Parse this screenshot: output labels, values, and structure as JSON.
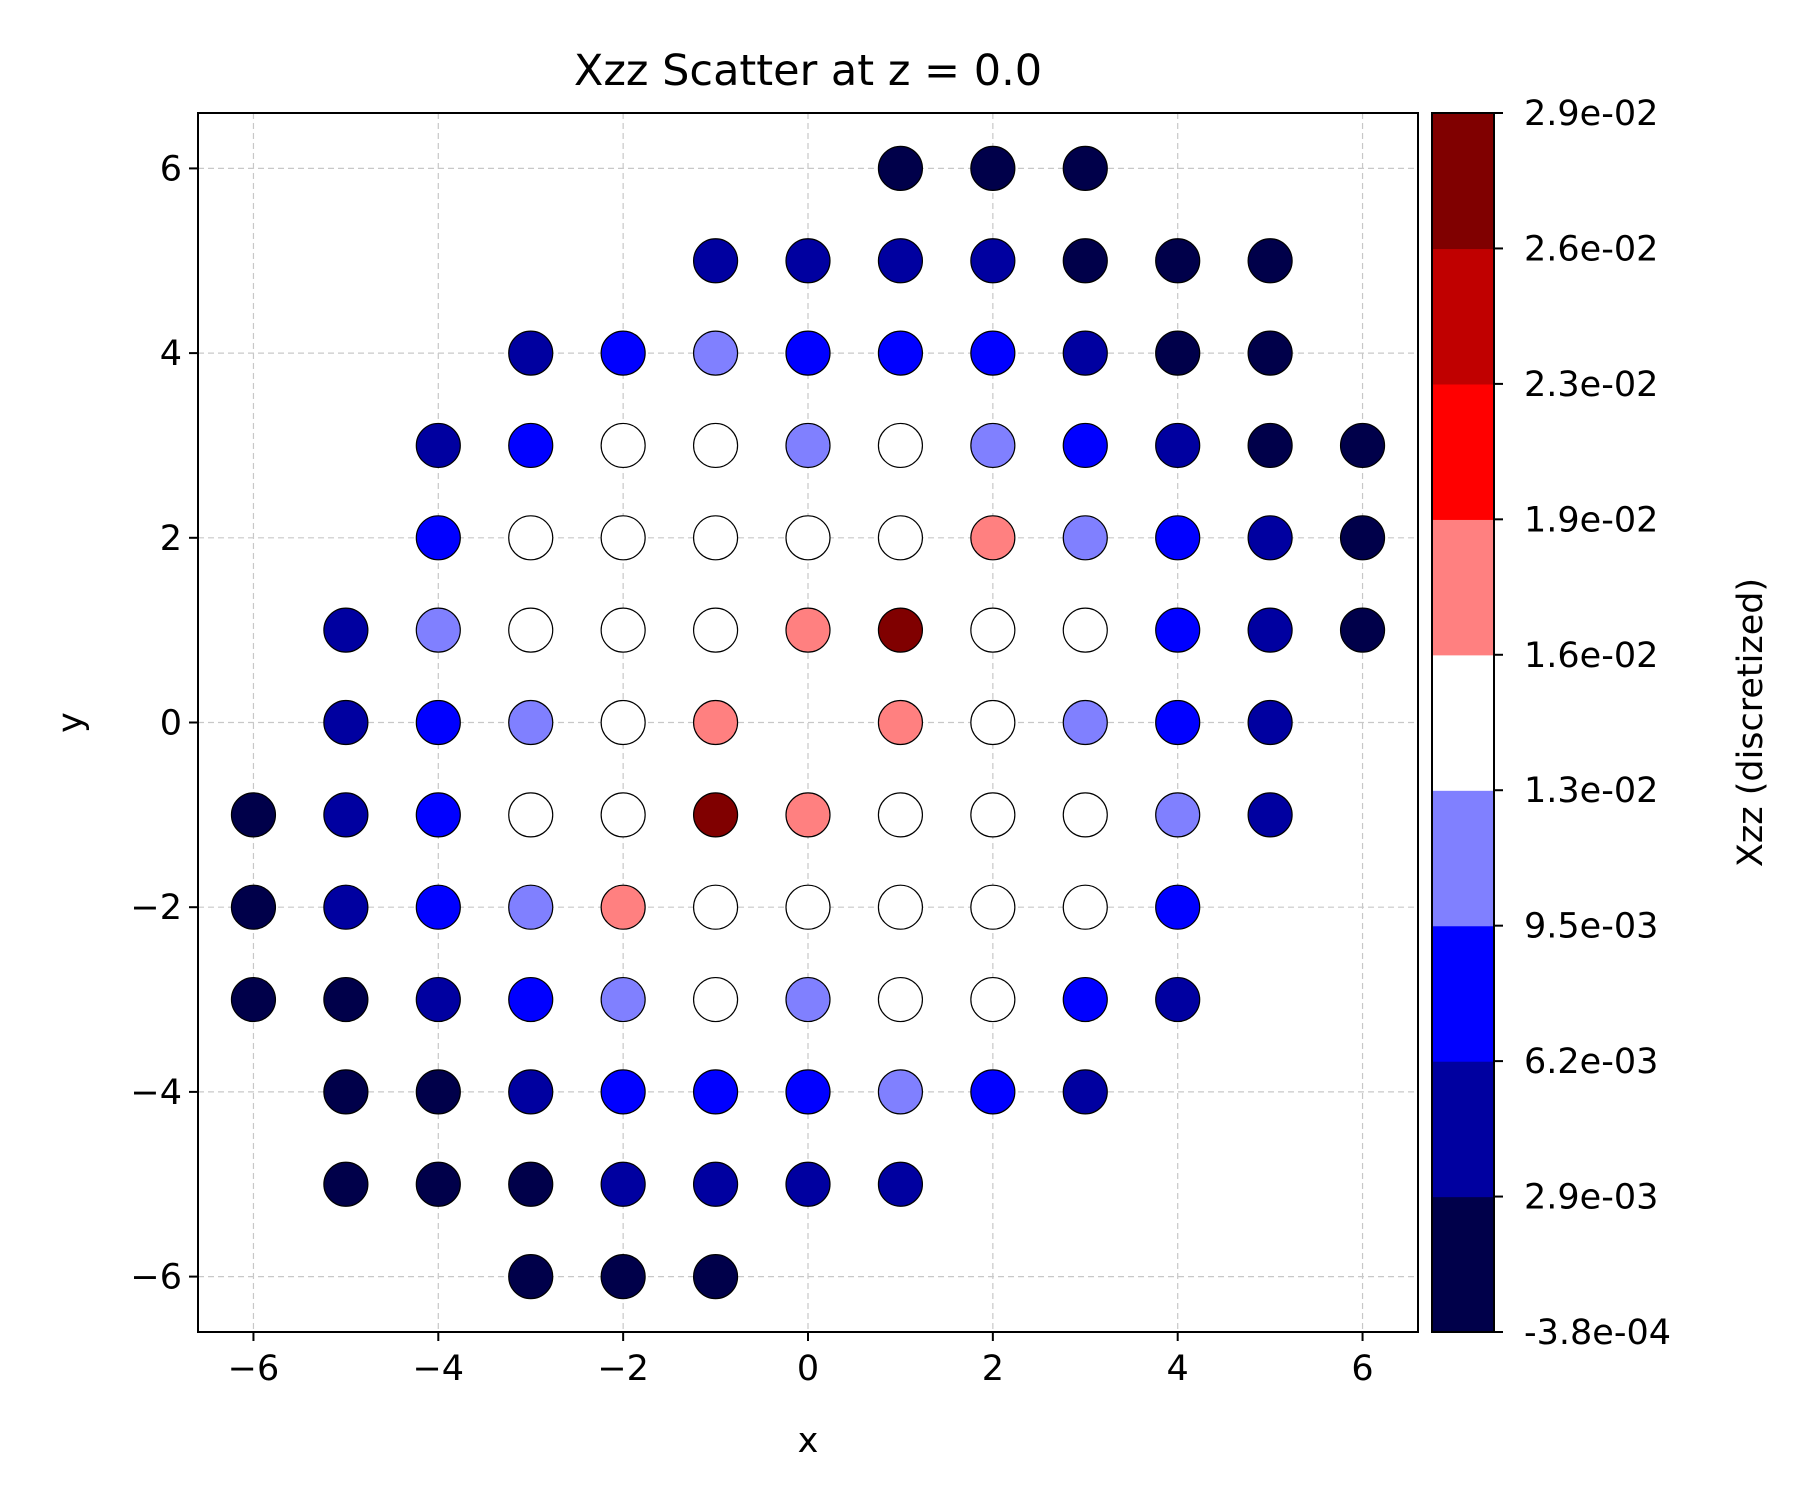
{
  "chart_data": {
    "type": "scatter",
    "title": "Xzz Scatter at z = 0.0",
    "xlabel": "x",
    "ylabel": "y",
    "xlim": [
      -6.6,
      6.6
    ],
    "ylim": [
      -6.6,
      6.6
    ],
    "xticks": [
      -6,
      -4,
      -2,
      0,
      2,
      4,
      6
    ],
    "yticks": [
      -6,
      -4,
      -2,
      0,
      2,
      4,
      6
    ],
    "xtick_labels": [
      "−6",
      "−4",
      "−2",
      "0",
      "2",
      "4",
      "6"
    ],
    "ytick_labels": [
      "−6",
      "−4",
      "−2",
      "0",
      "2",
      "4",
      "6"
    ],
    "grid": true,
    "colorbar": {
      "label": "Xzz (discretized)",
      "tick_labels": [
        "-3.8e-04",
        "2.9e-03",
        "6.2e-03",
        "9.5e-03",
        "1.3e-02",
        "1.6e-02",
        "1.9e-02",
        "2.3e-02",
        "2.6e-02",
        "2.9e-02"
      ],
      "band_colors": [
        "#00004a",
        "#0000a0",
        "#0000ff",
        "#8080ff",
        "#ffffff",
        "#ff8080",
        "#ff0000",
        "#c00000",
        "#800000"
      ]
    },
    "points_by_row": [
      {
        "y": 6,
        "x": [
          1,
          2,
          3
        ],
        "bin": [
          0,
          0,
          0
        ]
      },
      {
        "y": 5,
        "x": [
          -1,
          0,
          1,
          2,
          3,
          4,
          5
        ],
        "bin": [
          1,
          1,
          1,
          1,
          0,
          0,
          0
        ]
      },
      {
        "y": 4,
        "x": [
          -3,
          -2,
          -1,
          0,
          1,
          2,
          3,
          4,
          5
        ],
        "bin": [
          1,
          2,
          3,
          2,
          2,
          2,
          1,
          0,
          0
        ]
      },
      {
        "y": 3,
        "x": [
          -4,
          -3,
          -2,
          -1,
          0,
          1,
          2,
          3,
          4,
          5,
          6
        ],
        "bin": [
          1,
          2,
          4,
          4,
          3,
          4,
          3,
          2,
          1,
          0,
          0
        ]
      },
      {
        "y": 2,
        "x": [
          -4,
          -3,
          -2,
          -1,
          0,
          1,
          2,
          3,
          4,
          5,
          6
        ],
        "bin": [
          2,
          4,
          4,
          4,
          4,
          4,
          5,
          3,
          2,
          1,
          0
        ]
      },
      {
        "y": 1,
        "x": [
          -5,
          -4,
          -3,
          -2,
          -1,
          0,
          1,
          2,
          3,
          4,
          5,
          6
        ],
        "bin": [
          1,
          3,
          4,
          4,
          4,
          5,
          8,
          4,
          4,
          2,
          1,
          0
        ]
      },
      {
        "y": 0,
        "x": [
          -5,
          -4,
          -3,
          -2,
          -1,
          1,
          2,
          3,
          4,
          5
        ],
        "bin": [
          1,
          2,
          3,
          4,
          5,
          5,
          4,
          3,
          2,
          1
        ]
      },
      {
        "y": -1,
        "x": [
          -6,
          -5,
          -4,
          -3,
          -2,
          -1,
          0,
          1,
          2,
          3,
          4,
          5
        ],
        "bin": [
          0,
          1,
          2,
          4,
          4,
          8,
          5,
          4,
          4,
          4,
          3,
          1
        ]
      },
      {
        "y": -2,
        "x": [
          -6,
          -5,
          -4,
          -3,
          -2,
          -1,
          0,
          1,
          2,
          3,
          4
        ],
        "bin": [
          0,
          1,
          2,
          3,
          5,
          4,
          4,
          4,
          4,
          4,
          2
        ]
      },
      {
        "y": -3,
        "x": [
          -6,
          -5,
          -4,
          -3,
          -2,
          -1,
          0,
          1,
          2,
          3,
          4
        ],
        "bin": [
          0,
          0,
          1,
          2,
          3,
          4,
          3,
          4,
          4,
          2,
          1
        ]
      },
      {
        "y": -4,
        "x": [
          -5,
          -4,
          -3,
          -2,
          -1,
          0,
          1,
          2,
          3
        ],
        "bin": [
          0,
          0,
          1,
          2,
          2,
          2,
          3,
          2,
          1
        ]
      },
      {
        "y": -5,
        "x": [
          -5,
          -4,
          -3,
          -2,
          -1,
          0,
          1
        ],
        "bin": [
          0,
          0,
          0,
          1,
          1,
          1,
          1
        ]
      },
      {
        "y": -6,
        "x": [
          -3,
          -2,
          -1
        ],
        "bin": [
          0,
          0,
          0
        ]
      }
    ]
  }
}
